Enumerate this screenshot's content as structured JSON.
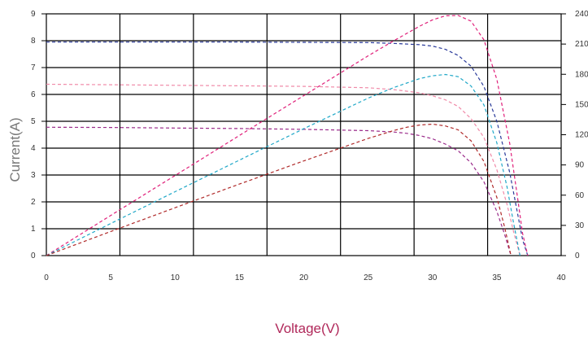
{
  "chart_data": {
    "type": "line",
    "xlabel": "Voltage(V)",
    "ylabel": "Current(A)",
    "xlim": [
      0,
      40
    ],
    "ylim": [
      0,
      9
    ],
    "y2lim": [
      0,
      240
    ],
    "x_ticks": [
      "0",
      "5",
      "10",
      "15",
      "20",
      "25",
      "30",
      "35",
      "40"
    ],
    "y_ticks": [
      "0",
      "1",
      "2",
      "3",
      "4",
      "5",
      "6",
      "7",
      "8",
      "9"
    ],
    "y2_ticks": [
      "0",
      "30",
      "60",
      "90",
      "120",
      "150",
      "180",
      "210",
      "240"
    ],
    "grid": true,
    "legend": "none",
    "colors": {
      "iv_8": "#2a3a9a",
      "iv_6_4": "#f08aa8",
      "iv_4_8": "#9a2a8a",
      "power_high": "#e0207a",
      "power_mid": "#20a8c8",
      "power_low": "#b02a2a",
      "xlabel": "#b0285a",
      "ylabel": "#777777"
    },
    "series": [
      {
        "axis": "left",
        "color": "#2a3a9a",
        "x": [
          0,
          5,
          10,
          15,
          20,
          25,
          27,
          29,
          30,
          31,
          32,
          33,
          34,
          35,
          36,
          36.6,
          37,
          37.4
        ],
        "y": [
          7.95,
          7.95,
          7.95,
          7.95,
          7.94,
          7.93,
          7.9,
          7.85,
          7.8,
          7.68,
          7.45,
          7.05,
          6.3,
          5.0,
          3.1,
          1.6,
          0.6,
          0
        ]
      },
      {
        "axis": "left",
        "color": "#f08aa8",
        "x": [
          0,
          5,
          10,
          15,
          20,
          25,
          27,
          29,
          30,
          31,
          32,
          33,
          34,
          35,
          35.8,
          36.3,
          36.8
        ],
        "y": [
          6.38,
          6.36,
          6.34,
          6.32,
          6.3,
          6.25,
          6.18,
          6.06,
          5.95,
          5.8,
          5.55,
          5.1,
          4.4,
          3.2,
          1.9,
          0.9,
          0
        ]
      },
      {
        "axis": "left",
        "color": "#9a2a8a",
        "x": [
          0,
          5,
          10,
          15,
          20,
          25,
          27,
          28,
          29,
          30,
          31,
          32,
          33,
          34,
          35,
          35.6,
          36.1
        ],
        "y": [
          4.78,
          4.77,
          4.75,
          4.73,
          4.7,
          4.65,
          4.6,
          4.55,
          4.47,
          4.35,
          4.15,
          3.9,
          3.45,
          2.75,
          1.65,
          0.8,
          0
        ]
      },
      {
        "axis": "right",
        "color": "#e0207a",
        "x": [
          0,
          5,
          10,
          15,
          20,
          25,
          27,
          29,
          30,
          31,
          32,
          33,
          34,
          35,
          36,
          36.6,
          37,
          37.4
        ],
        "y": [
          0,
          39.8,
          79.5,
          119.3,
          158.8,
          198.3,
          213.3,
          227.7,
          234,
          238.1,
          238.4,
          232.7,
          214.2,
          175,
          111.6,
          58.6,
          22.2,
          0
        ]
      },
      {
        "axis": "right",
        "color": "#20a8c8",
        "x": [
          0,
          5,
          10,
          15,
          20,
          25,
          27,
          29,
          30,
          31,
          32,
          33,
          34,
          35,
          35.8,
          36.3,
          36.8
        ],
        "y": [
          0,
          31.8,
          63.4,
          94.8,
          126,
          156.3,
          166.9,
          175.7,
          178.5,
          179.8,
          177.6,
          168.3,
          149.6,
          112,
          68,
          32.7,
          0
        ]
      },
      {
        "axis": "right",
        "color": "#b02a2a",
        "x": [
          0,
          5,
          10,
          15,
          20,
          25,
          27,
          28,
          29,
          30,
          31,
          32,
          33,
          34,
          35,
          35.6,
          36.1
        ],
        "y": [
          0,
          23.9,
          47.5,
          71,
          94,
          116.3,
          124.2,
          127.4,
          129.6,
          130.5,
          128.7,
          124.8,
          113.9,
          93.5,
          57.8,
          28.5,
          0
        ]
      }
    ]
  }
}
